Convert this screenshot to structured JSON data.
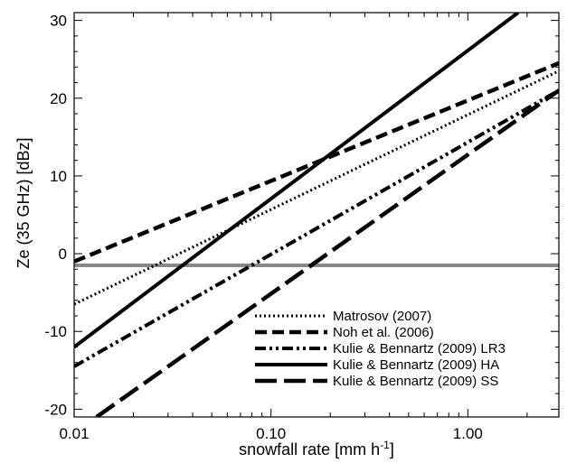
{
  "chart_data": {
    "type": "line",
    "xlabel": "snowfall rate [mm h",
    "xlabel_sup": "-1",
    "xlabel_end": "]",
    "ylabel": "Ze (35 GHz) [dBz]",
    "xscale": "log",
    "xlim": [
      0.01,
      2.9
    ],
    "ylim": [
      -21,
      31
    ],
    "x_ticks": [
      0.01,
      0.1,
      1.0
    ],
    "x_tick_labels": [
      "0.01",
      "0.10",
      "1.00"
    ],
    "y_ticks": [
      -20,
      -10,
      0,
      10,
      20,
      30
    ],
    "y_tick_labels": [
      "-20",
      "-10",
      "0",
      "10",
      "20",
      "30"
    ],
    "legend_position": "bottom-right",
    "reference_line": {
      "y": -1.5,
      "color": "#888888"
    },
    "series": [
      {
        "name": "Matrosov (2007)",
        "style": "dotted",
        "x": [
          0.01,
          2.9
        ],
        "y": [
          -6.5,
          23.5
        ]
      },
      {
        "name": "Noh et al. (2006)",
        "style": "dashed",
        "x": [
          0.01,
          2.9
        ],
        "y": [
          -1.0,
          24.5
        ]
      },
      {
        "name": "Kulie & Bennartz (2009) LR3",
        "style": "dashdot",
        "x": [
          0.01,
          2.9
        ],
        "y": [
          -14.5,
          21.0
        ]
      },
      {
        "name": "Kulie & Bennartz (2009) HA",
        "style": "solid",
        "x": [
          0.01,
          1.8
        ],
        "y": [
          -12.0,
          31.0
        ]
      },
      {
        "name": "Kulie & Bennartz (2009) SS",
        "style": "longdash",
        "x": [
          0.013,
          2.9
        ],
        "y": [
          -21.0,
          21.0
        ]
      }
    ]
  }
}
